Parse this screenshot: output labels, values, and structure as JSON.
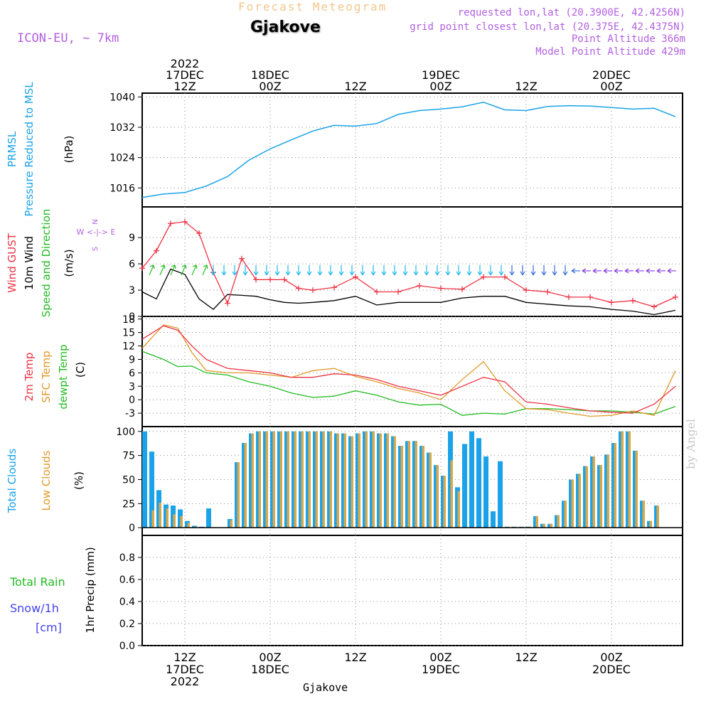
{
  "header": {
    "title": "Forecast Meteogram",
    "location": "Gjakove",
    "model": "ICON-EU, ~ 7km",
    "requested": "requested lon,lat (20.3900E, 42.4256N)",
    "grid": "grid point closest lon,lat (20.375E, 42.4375N)",
    "alt": "Point Altitude 366m",
    "model_alt": "Model Point Altitude 429m"
  },
  "footer_label": "Gjakove",
  "signature": "by Angel",
  "colors": {
    "pressure": "#1aa3e8",
    "gust": "#ee3344",
    "wind": "#000000",
    "direction": "#22bb22",
    "temp2m": "#ee3344",
    "sfc": "#e09a2a",
    "dew": "#22bb22",
    "total_cloud": "#1aa3e8",
    "low_cloud": "#d9a84a",
    "rain": "#22bb22",
    "snow": "#4444ee",
    "grid": "#888888",
    "title_purple": "#b25fe0"
  },
  "side_labels": {
    "p1": [
      "PRMSL",
      "Pressure Reduced to MSL"
    ],
    "p1_unit": "(hPa)",
    "p2": [
      "Wind GUST",
      "10m Wind",
      "Speed and Direction"
    ],
    "p2_unit": "(m/s)",
    "compass": "W <-|-> E",
    "p3": [
      "2m Temp",
      "SFC Temp",
      "dewpt Temp"
    ],
    "p3_unit": "(C)",
    "p4": [
      "Total Clouds",
      "Low Clouds"
    ],
    "p4_unit": "(%)",
    "p5": [
      "Total  Rain",
      "Snow/1h",
      "[cm]"
    ],
    "p5_unit": "1hr Precip (mm)"
  },
  "chart_data": [
    {
      "type": "line",
      "title": "PRMSL Pressure Reduced to MSL",
      "ylabel": "(hPa)",
      "ylim": [
        1011,
        1041
      ],
      "yticks": [
        1016,
        1024,
        1032,
        1040
      ],
      "x_hours": [
        0,
        3,
        6,
        9,
        12,
        15,
        18,
        21,
        24,
        27,
        30,
        33,
        36,
        39,
        42,
        45,
        48,
        51,
        54,
        57,
        60,
        63,
        66,
        69,
        72,
        75
      ],
      "series": [
        {
          "name": "PRMSL",
          "values": [
            1013.5,
            1014.4,
            1014.8,
            1016.5,
            1019.0,
            1023.3,
            1026.3,
            1028.7,
            1031.0,
            1032.5,
            1032.3,
            1033.0,
            1035.4,
            1036.4,
            1036.8,
            1037.4,
            1038.6,
            1036.6,
            1036.4,
            1037.5,
            1037.7,
            1037.6,
            1037.2,
            1036.8,
            1037.0,
            1034.8
          ]
        }
      ]
    },
    {
      "type": "line",
      "title": "Wind GUST / 10m Wind Speed and Direction",
      "ylabel": "(m/s)",
      "ylim": [
        0,
        12
      ],
      "yticks": [
        0,
        3,
        6,
        9
      ],
      "x_hours": [
        0,
        2,
        4,
        6,
        8,
        10,
        12,
        14,
        16,
        18,
        20,
        22,
        24,
        27,
        30,
        33,
        36,
        39,
        42,
        45,
        48,
        51,
        54,
        57,
        60,
        63,
        66,
        69,
        72,
        75
      ],
      "series": [
        {
          "name": "Wind GUST",
          "values": [
            5.5,
            7.5,
            10.6,
            10.8,
            9.5,
            5.0,
            1.5,
            6.6,
            4.2,
            4.2,
            4.2,
            3.2,
            3.0,
            3.3,
            4.5,
            2.8,
            2.8,
            3.5,
            3.2,
            3.1,
            4.5,
            4.5,
            3.0,
            2.8,
            2.2,
            2.2,
            1.6,
            1.8,
            1.1,
            2.2
          ]
        },
        {
          "name": "10m Wind",
          "values": [
            2.8,
            2.0,
            5.4,
            4.8,
            2.0,
            0.8,
            2.5,
            2.4,
            2.3,
            1.9,
            1.6,
            1.5,
            1.6,
            1.8,
            2.3,
            1.3,
            1.6,
            1.6,
            1.6,
            2.1,
            2.3,
            2.3,
            1.6,
            1.4,
            1.2,
            1.1,
            0.8,
            0.6,
            0.2,
            0.7
          ]
        }
      ]
    },
    {
      "type": "line",
      "title": "2m Temp / SFC Temp / dewpt Temp",
      "ylabel": "(C)",
      "ylim": [
        -6,
        18
      ],
      "yticks": [
        -3,
        0,
        3,
        6,
        9,
        12,
        15,
        18
      ],
      "x_hours": [
        0,
        3,
        5,
        7,
        9,
        12,
        15,
        18,
        21,
        24,
        27,
        30,
        33,
        36,
        39,
        42,
        45,
        48,
        51,
        54,
        57,
        60,
        63,
        66,
        69,
        72,
        75
      ],
      "series": [
        {
          "name": "2m Temp",
          "values": [
            13.5,
            16.5,
            15.5,
            12.0,
            9.0,
            7.0,
            6.5,
            6.0,
            5.0,
            5.0,
            5.8,
            5.5,
            4.5,
            3.0,
            2.0,
            1.0,
            3.0,
            5.0,
            4.0,
            -0.5,
            -1.0,
            -1.8,
            -2.5,
            -2.8,
            -3.0,
            -1.0,
            3.0
          ]
        },
        {
          "name": "SFC Temp",
          "values": [
            11.5,
            16.7,
            16.0,
            10.5,
            6.5,
            6.0,
            6.0,
            5.5,
            5.0,
            6.5,
            7.0,
            5.2,
            4.0,
            2.5,
            1.5,
            0.0,
            4.5,
            8.5,
            2.0,
            -2.0,
            -2.2,
            -3.0,
            -3.7,
            -3.5,
            -2.5,
            -3.5,
            6.5
          ]
        },
        {
          "name": "dewpt Temp",
          "values": [
            10.8,
            9.0,
            7.4,
            7.5,
            6.0,
            5.5,
            4.0,
            3.0,
            1.5,
            0.5,
            0.8,
            2.0,
            1.0,
            -0.5,
            -1.2,
            -1.0,
            -3.5,
            -3.0,
            -3.2,
            -2.0,
            -2.0,
            -2.2,
            -2.5,
            -2.5,
            -2.8,
            -3.2,
            -1.5
          ]
        }
      ]
    },
    {
      "type": "bar",
      "title": "Total Clouds / Low Clouds",
      "ylabel": "(%)",
      "ylim": [
        0,
        105
      ],
      "yticks": [
        0,
        25,
        50,
        75,
        100
      ],
      "x_hours": [
        0,
        1,
        2,
        3,
        4,
        5,
        6,
        7,
        8,
        9,
        10,
        11,
        12,
        13,
        14,
        15,
        16,
        17,
        18,
        19,
        20,
        21,
        22,
        23,
        24,
        25,
        26,
        27,
        28,
        29,
        30,
        31,
        32,
        33,
        34,
        35,
        36,
        37,
        38,
        39,
        40,
        41,
        42,
        43,
        44,
        45,
        46,
        47,
        48,
        49,
        50,
        51,
        52,
        53,
        54,
        55,
        56,
        57,
        58,
        59,
        60,
        61,
        62,
        63,
        64,
        65,
        66,
        67,
        68,
        69,
        70,
        71,
        72,
        73,
        74,
        75
      ],
      "series": [
        {
          "name": "Total Clouds",
          "values": [
            100,
            79,
            39,
            24,
            23,
            19,
            7,
            2,
            1,
            20,
            0,
            0,
            9,
            68,
            88,
            98,
            100,
            100,
            100,
            100,
            100,
            100,
            100,
            100,
            100,
            100,
            100,
            98,
            98,
            95,
            98,
            100,
            100,
            98,
            98,
            95,
            85,
            90,
            90,
            85,
            78,
            65,
            54,
            100,
            42,
            87,
            100,
            93,
            74,
            17,
            69,
            1,
            1,
            1,
            1,
            12,
            4,
            4,
            13,
            28,
            50,
            56,
            64,
            74,
            65,
            76,
            88,
            100,
            100,
            80,
            28,
            7,
            23,
            0,
            0,
            0
          ]
        },
        {
          "name": "Low Clouds",
          "values": [
            0,
            18,
            26,
            20,
            14,
            12,
            5,
            1,
            0,
            0,
            0,
            0,
            8,
            68,
            88,
            98,
            100,
            100,
            100,
            100,
            100,
            100,
            100,
            100,
            100,
            100,
            100,
            98,
            98,
            95,
            98,
            100,
            100,
            98,
            98,
            95,
            85,
            90,
            90,
            85,
            78,
            65,
            54,
            70,
            38,
            0,
            0,
            0,
            0,
            0,
            0,
            1,
            1,
            1,
            1,
            12,
            4,
            4,
            13,
            28,
            50,
            56,
            64,
            74,
            65,
            76,
            88,
            100,
            100,
            80,
            28,
            7,
            23,
            0,
            0,
            0
          ]
        }
      ]
    },
    {
      "type": "bar",
      "title": "Total Rain / Snow 1hr Precip",
      "ylabel": "1hr Precip (mm)",
      "ylim": [
        0,
        1.0
      ],
      "yticks": [
        0,
        0.2,
        0.4,
        0.6,
        0.8
      ],
      "series": [
        {
          "name": "Total Rain",
          "values": []
        },
        {
          "name": "Snow/1h",
          "values": []
        }
      ]
    }
  ],
  "time_axis": {
    "top_labels": [
      {
        "hour": 6,
        "lines": [
          "2022",
          "17DEC",
          "12Z"
        ]
      },
      {
        "hour": 18,
        "lines": [
          "18DEC",
          "00Z"
        ]
      },
      {
        "hour": 30,
        "lines": [
          "12Z"
        ]
      },
      {
        "hour": 42,
        "lines": [
          "19DEC",
          "00Z"
        ]
      },
      {
        "hour": 54,
        "lines": [
          "12Z"
        ]
      },
      {
        "hour": 66,
        "lines": [
          "20DEC",
          "00Z"
        ]
      }
    ],
    "bottom_labels": [
      {
        "hour": 6,
        "lines": [
          "12Z",
          "17DEC",
          "2022"
        ]
      },
      {
        "hour": 18,
        "lines": [
          "00Z",
          "18DEC"
        ]
      },
      {
        "hour": 30,
        "lines": [
          "12Z"
        ]
      },
      {
        "hour": 42,
        "lines": [
          "00Z",
          "19DEC"
        ]
      },
      {
        "hour": 54,
        "lines": [
          "12Z"
        ]
      },
      {
        "hour": 66,
        "lines": [
          "00Z",
          "20DEC"
        ]
      }
    ]
  }
}
